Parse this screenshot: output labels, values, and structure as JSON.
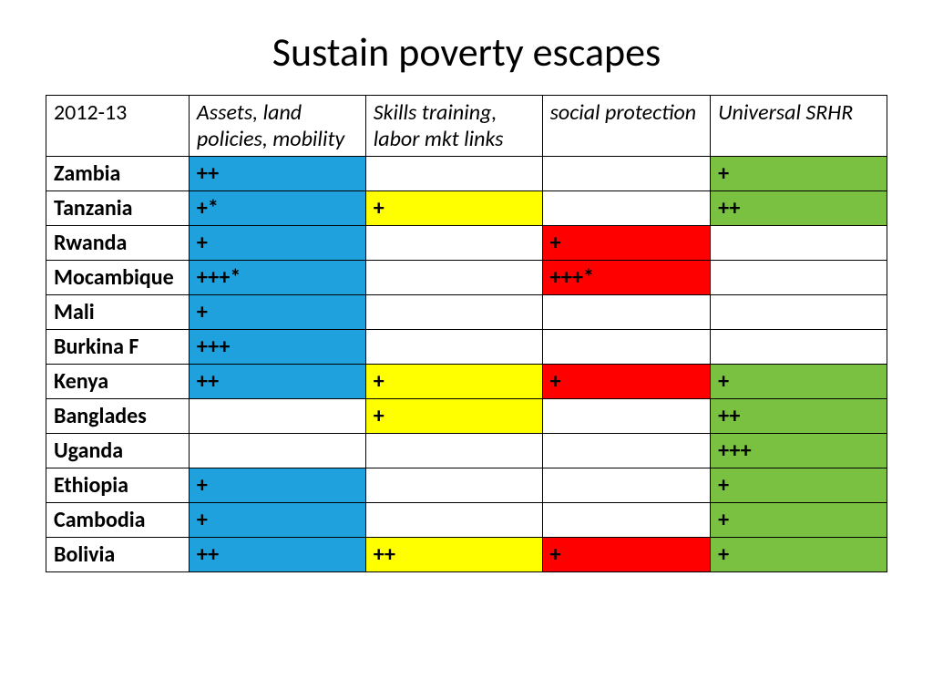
{
  "title": "Sustain poverty escapes",
  "table": {
    "year_label": "2012-13",
    "headers": [
      "Assets, land policies, mobility",
      "Skills training, labor mkt links",
      "social protection",
      "Universal SRHR"
    ],
    "column_colors": [
      "#1ea1dc",
      "#ffff00",
      "#ff0000",
      "#7ac142"
    ],
    "border_color": "#000000",
    "background_color": "#ffffff",
    "header_font_style": "italic",
    "header_font_weight": "normal",
    "rowlabel_font_weight": "bold",
    "cell_font_weight": "bold",
    "font_size_pt": 18,
    "title_fontsize_pt": 32,
    "rows": [
      {
        "label": "Zambia",
        "cells": [
          "++",
          "",
          "",
          "+"
        ]
      },
      {
        "label": "Tanzania",
        "cells": [
          "+*",
          "+",
          "",
          "++"
        ]
      },
      {
        "label": "Rwanda",
        "cells": [
          "+",
          "",
          "+",
          ""
        ]
      },
      {
        "label": "Mocambique",
        "cells": [
          "+++*",
          "",
          "+++*",
          ""
        ]
      },
      {
        "label": "Mali",
        "cells": [
          "+",
          "",
          "",
          ""
        ]
      },
      {
        "label": "Burkina F",
        "cells": [
          "+++",
          "",
          "",
          ""
        ]
      },
      {
        "label": "Kenya",
        "cells": [
          "++",
          "+",
          "+",
          "+"
        ]
      },
      {
        "label": "Banglades",
        "cells": [
          "",
          "+",
          "",
          "++"
        ]
      },
      {
        "label": "Uganda",
        "cells": [
          "",
          "",
          "",
          "+++"
        ]
      },
      {
        "label": "Ethiopia",
        "cells": [
          "+",
          "",
          "",
          "+"
        ]
      },
      {
        "label": "Cambodia",
        "cells": [
          "+",
          "",
          "",
          "+"
        ]
      },
      {
        "label": "Bolivia",
        "cells": [
          "++",
          "++",
          "+",
          "+"
        ]
      }
    ]
  }
}
